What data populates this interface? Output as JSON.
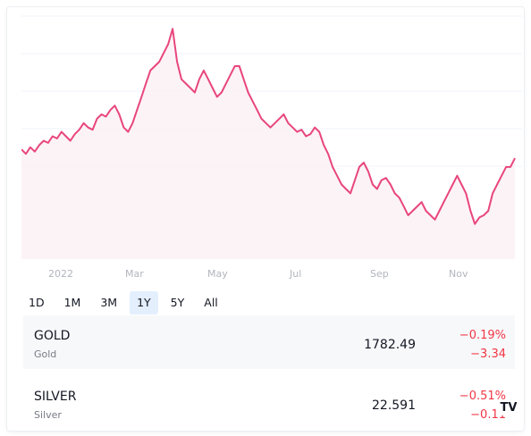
{
  "chart_data": {
    "type": "area",
    "title": "",
    "x_tick_labels": [
      "2022",
      "Mar",
      "May",
      "Jul",
      "Sep",
      "Nov"
    ],
    "y_range": [
      1550,
      2100
    ],
    "grid": true,
    "series": [
      {
        "color": "#e8467c",
        "values": [
          1800,
          1790,
          1805,
          1795,
          1810,
          1820,
          1815,
          1830,
          1825,
          1840,
          1830,
          1820,
          1835,
          1845,
          1860,
          1850,
          1845,
          1870,
          1880,
          1875,
          1890,
          1900,
          1880,
          1850,
          1840,
          1860,
          1890,
          1920,
          1950,
          1980,
          1990,
          2000,
          2020,
          2040,
          2075,
          2000,
          1960,
          1950,
          1940,
          1930,
          1960,
          1980,
          1960,
          1940,
          1920,
          1930,
          1950,
          1970,
          1990,
          1990,
          1960,
          1930,
          1910,
          1890,
          1870,
          1860,
          1850,
          1860,
          1870,
          1880,
          1860,
          1850,
          1840,
          1845,
          1830,
          1835,
          1850,
          1840,
          1810,
          1790,
          1760,
          1740,
          1720,
          1710,
          1700,
          1730,
          1760,
          1770,
          1750,
          1720,
          1710,
          1730,
          1735,
          1720,
          1700,
          1690,
          1670,
          1650,
          1660,
          1670,
          1680,
          1660,
          1650,
          1640,
          1660,
          1680,
          1700,
          1720,
          1740,
          1720,
          1700,
          1660,
          1630,
          1645,
          1650,
          1660,
          1700,
          1720,
          1740,
          1760,
          1760,
          1780
        ]
      }
    ]
  },
  "ranges": [
    "1D",
    "1M",
    "3M",
    "1Y",
    "5Y",
    "All"
  ],
  "active_range": "1Y",
  "symbols": [
    {
      "symbol": "GOLD",
      "description": "Gold",
      "price": "1782.49",
      "change_percent": "−0.19%",
      "change": "−3.34"
    },
    {
      "symbol": "SILVER",
      "description": "Silver",
      "price": "22.591",
      "change_percent": "−0.51%",
      "change": "−0.11"
    }
  ],
  "logo": "TV"
}
